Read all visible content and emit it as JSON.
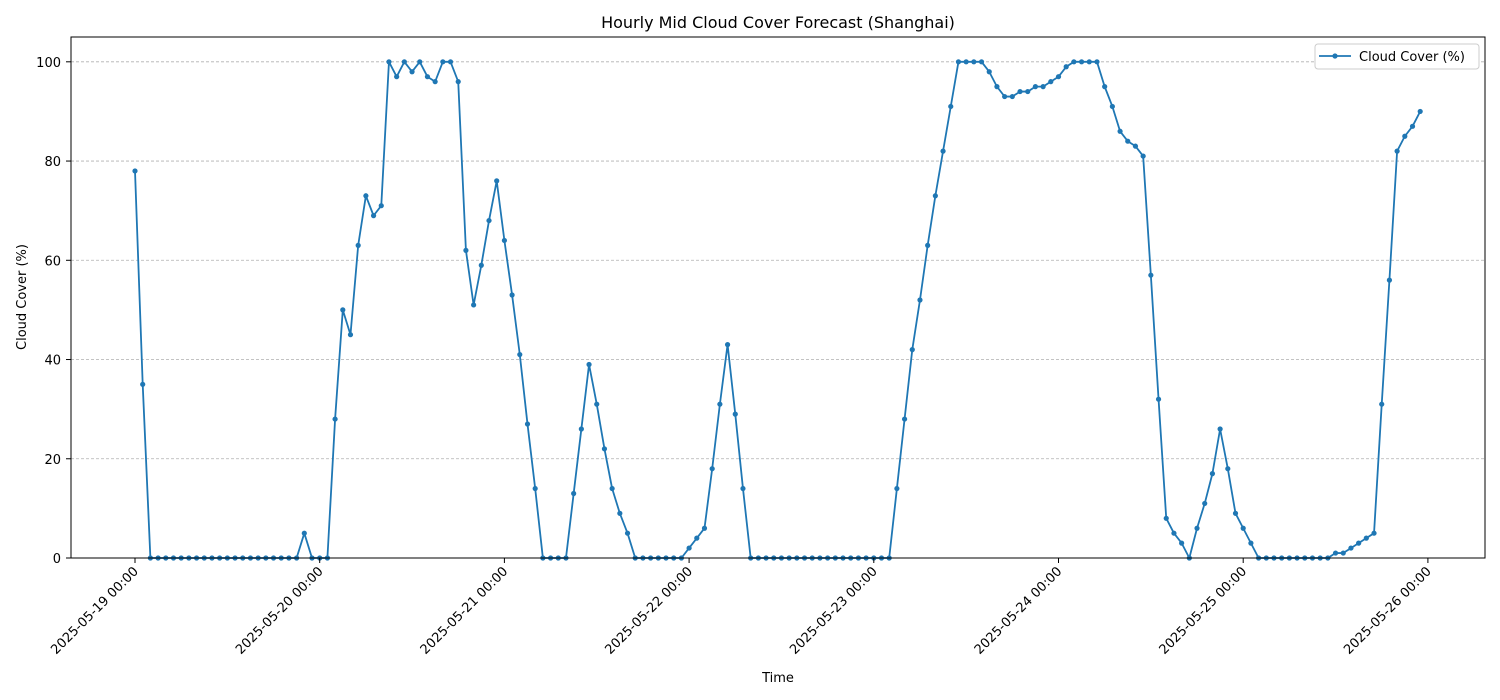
{
  "chart_data": {
    "type": "line",
    "title": "Hourly Mid Cloud Cover Forecast (Shanghai)",
    "xlabel": "Time",
    "ylabel": "Cloud Cover (%)",
    "x_start": "2025-05-19 00:00",
    "x_step": "1 hour",
    "x_tick_labels": [
      "2025-05-19 00:00",
      "2025-05-20 00:00",
      "2025-05-21 00:00",
      "2025-05-22 00:00",
      "2025-05-23 00:00",
      "2025-05-24 00:00",
      "2025-05-25 00:00",
      "2025-05-26 00:00"
    ],
    "y_ticks": [
      0,
      20,
      40,
      60,
      80,
      100
    ],
    "ylim": [
      0,
      105
    ],
    "grid": "horizontal dashed",
    "legend_position": "top-right",
    "series": [
      {
        "name": "Cloud Cover (%)",
        "color": "#1f77b4",
        "values": [
          78,
          35,
          0,
          0,
          0,
          0,
          0,
          0,
          0,
          0,
          0,
          0,
          0,
          0,
          0,
          0,
          0,
          0,
          0,
          0,
          0,
          0,
          5,
          0,
          0,
          0,
          28,
          50,
          45,
          63,
          73,
          69,
          71,
          100,
          97,
          100,
          98,
          100,
          97,
          96,
          100,
          100,
          96,
          62,
          51,
          59,
          68,
          76,
          64,
          53,
          41,
          27,
          14,
          0,
          0,
          0,
          0,
          13,
          26,
          39,
          31,
          22,
          14,
          9,
          5,
          0,
          0,
          0,
          0,
          0,
          0,
          0,
          2,
          4,
          6,
          18,
          31,
          43,
          29,
          14,
          0,
          0,
          0,
          0,
          0,
          0,
          0,
          0,
          0,
          0,
          0,
          0,
          0,
          0,
          0,
          0,
          0,
          0,
          0,
          14,
          28,
          42,
          52,
          63,
          73,
          82,
          91,
          100,
          100,
          100,
          100,
          98,
          95,
          93,
          93,
          94,
          94,
          95,
          95,
          96,
          97,
          99,
          100,
          100,
          100,
          100,
          95,
          91,
          86,
          84,
          83,
          81,
          57,
          32,
          8,
          5,
          3,
          0,
          6,
          11,
          17,
          26,
          18,
          9,
          6,
          3,
          0,
          0,
          0,
          0,
          0,
          0,
          0,
          0,
          0,
          0,
          1,
          1,
          2,
          3,
          4,
          5,
          31,
          56,
          82,
          85,
          87,
          90
        ]
      }
    ]
  }
}
